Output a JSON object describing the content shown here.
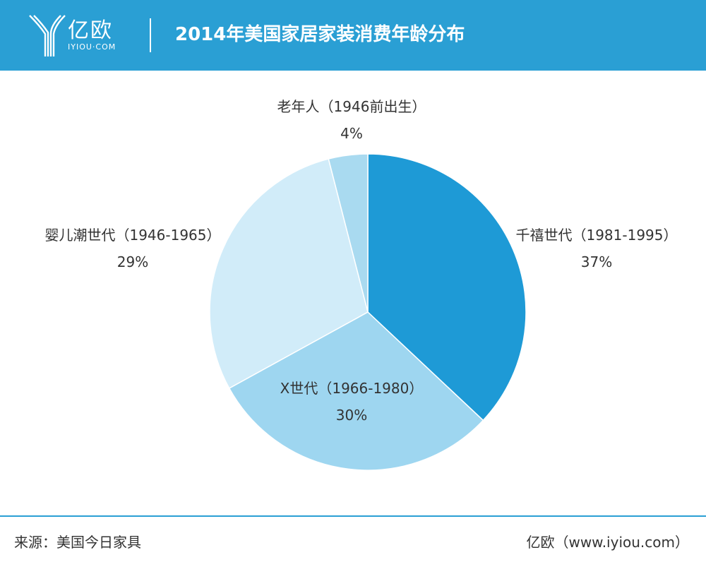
{
  "header": {
    "logo_text": "亿欧",
    "logo_sub": "IYIOU·COM",
    "title": "2014年美国家居家装消费年龄分布"
  },
  "chart_data": {
    "type": "pie",
    "title": "2014年美国家居家装消费年龄分布",
    "slices": [
      {
        "label": "千禧世代（1981-1995）",
        "value": 37,
        "display": "37%",
        "color": "#1e9ad6"
      },
      {
        "label": "X世代（1966-1980）",
        "value": 30,
        "display": "30%",
        "color": "#9ed6f0"
      },
      {
        "label": "婴儿潮世代（1946-1965）",
        "value": 29,
        "display": "29%",
        "color": "#d1ecf9"
      },
      {
        "label": "老年人（1946前出生）",
        "value": 4,
        "display": "4%",
        "color": "#a9daf0"
      }
    ],
    "start": "12 o'clock",
    "direction": "clockwise"
  },
  "footer": {
    "source": "来源：美国今日家具",
    "credit": "亿欧（www.iyiou.com）"
  }
}
